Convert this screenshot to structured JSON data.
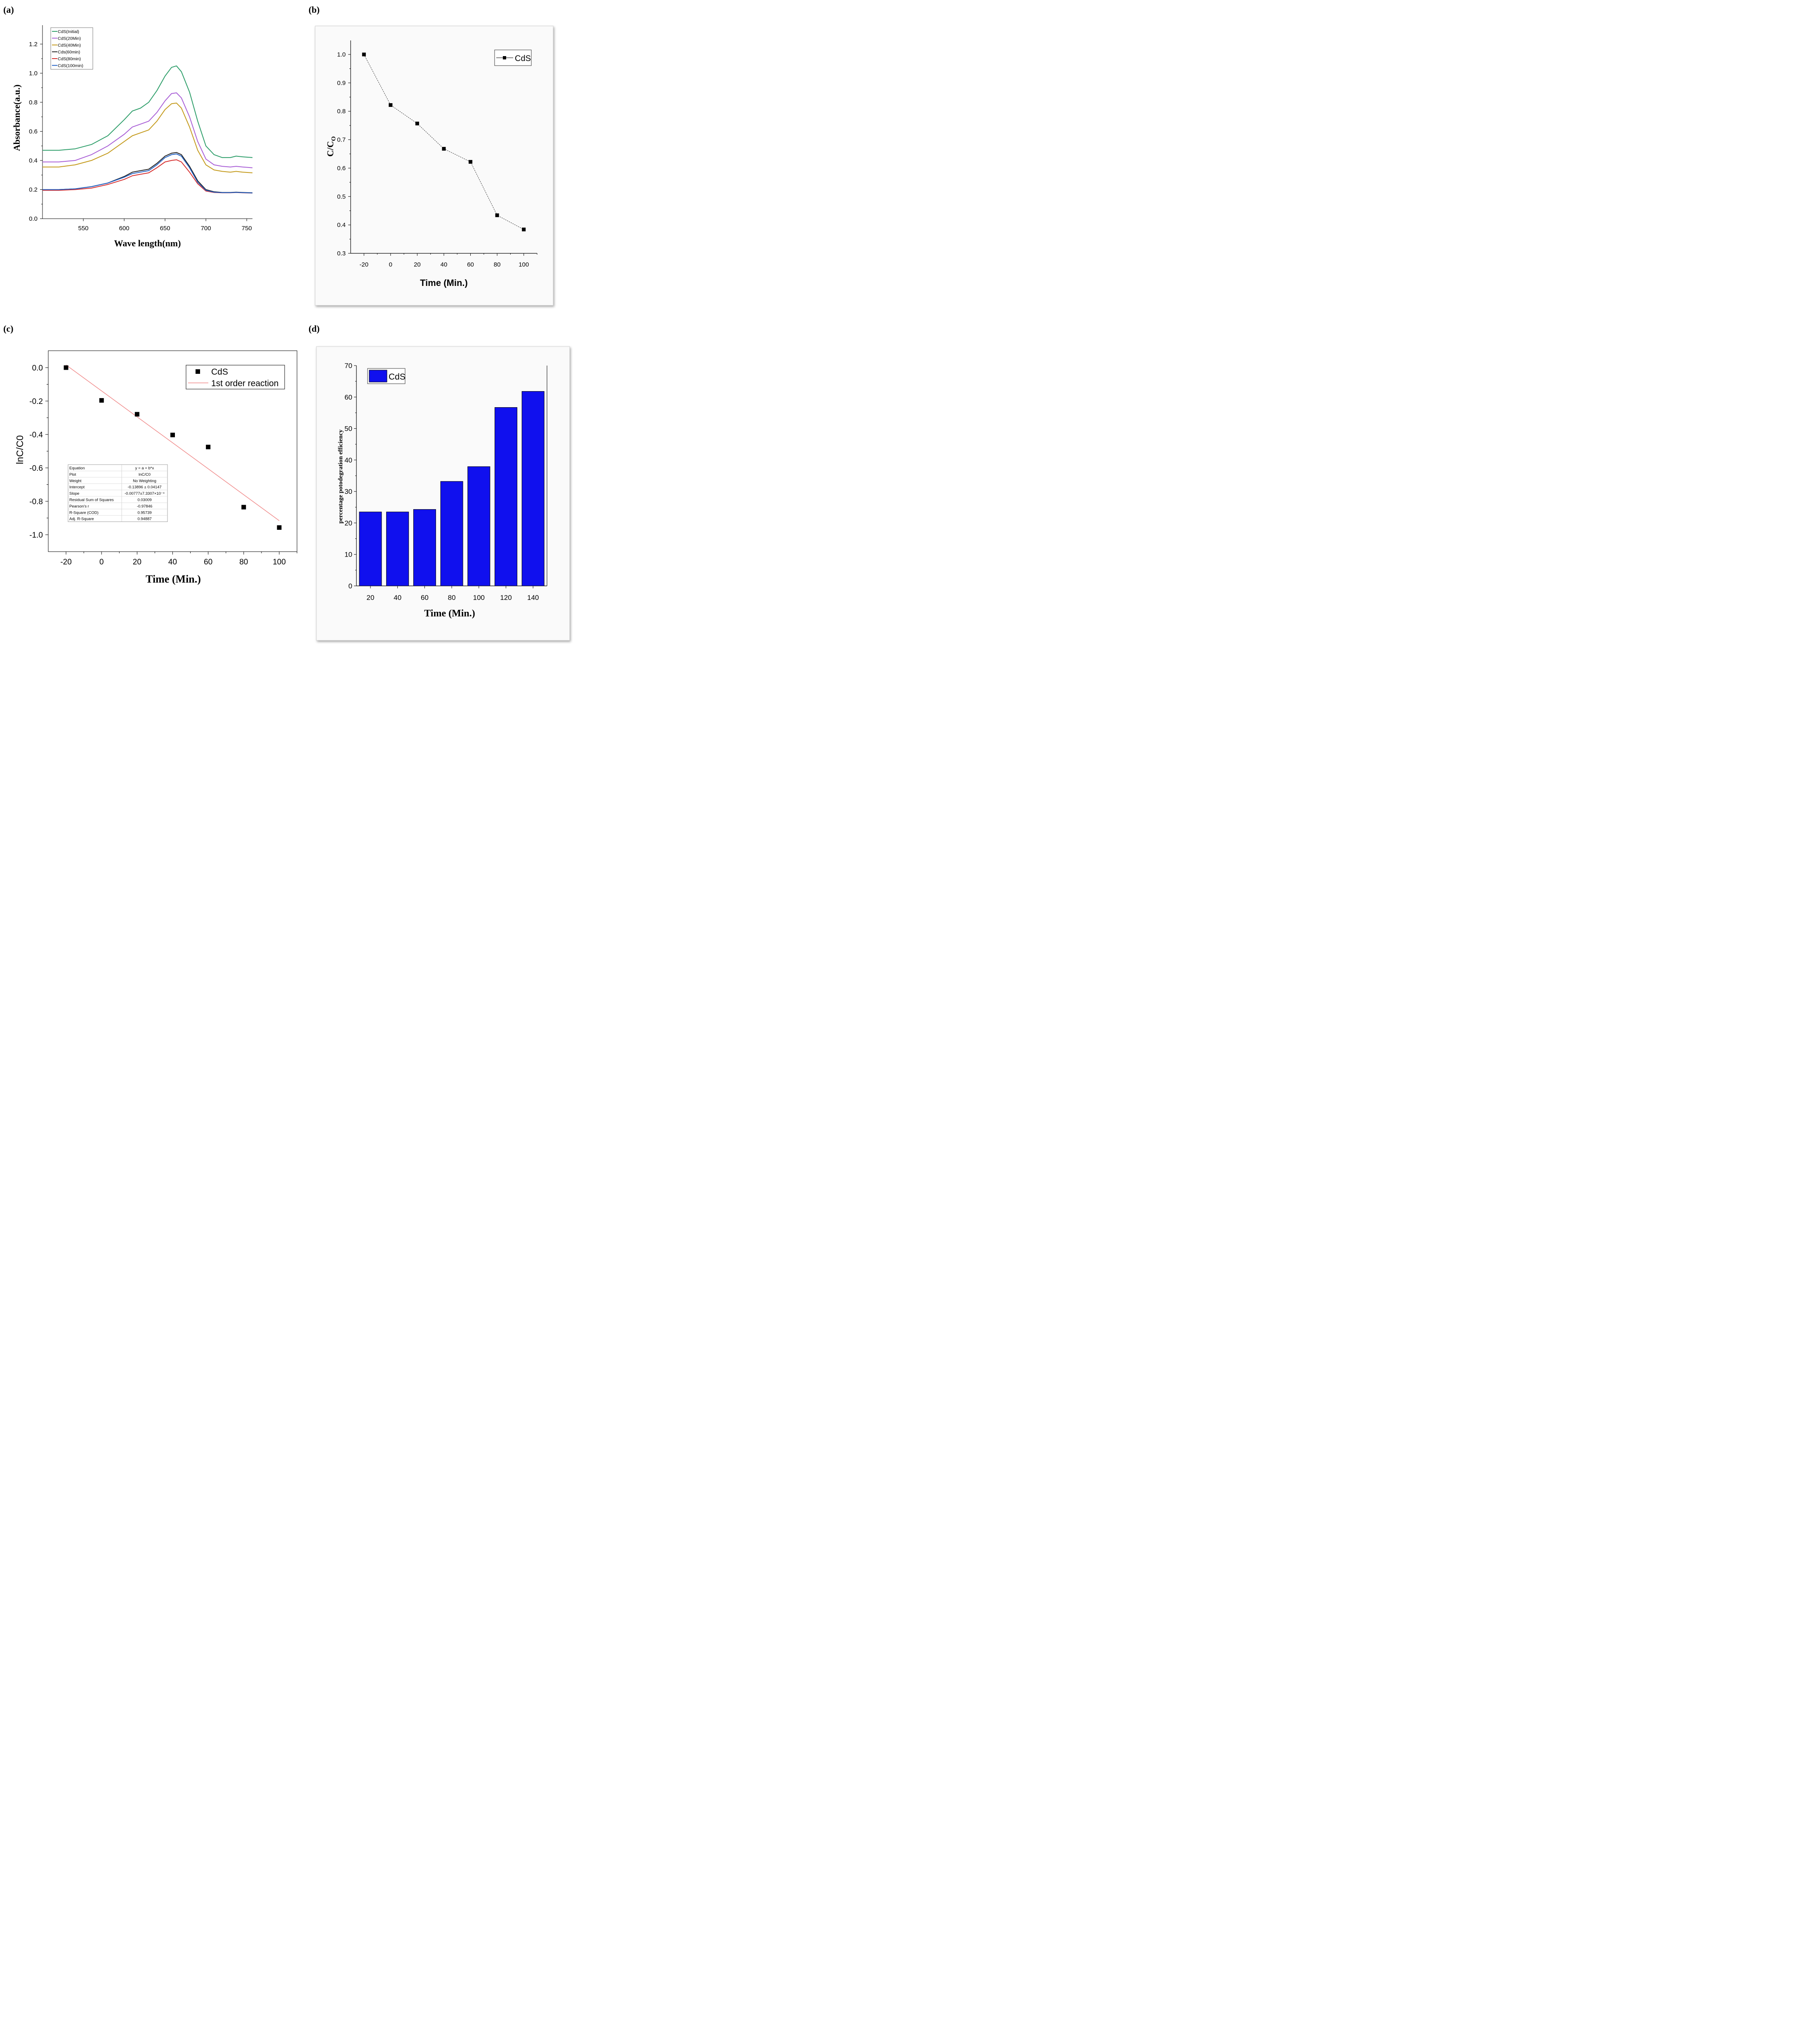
{
  "panels": {
    "a": "(a)",
    "b": "(b)",
    "c": "(c)",
    "d": "(d)"
  },
  "chart_data": [
    {
      "id": "a",
      "type": "line",
      "xlabel": "Wave length(nm)",
      "ylabel": "Absorbance(a.u.)",
      "xlim": [
        500,
        757
      ],
      "ylim": [
        0.0,
        1.33
      ],
      "xticks": [
        550,
        600,
        650,
        700,
        750
      ],
      "yticks": [
        0.0,
        0.2,
        0.4,
        0.6,
        0.8,
        1.0,
        1.2
      ],
      "ytick_labels": [
        "0.0",
        "0.2",
        "0.4",
        "0.6",
        "0.8",
        "1.0",
        "1.2"
      ],
      "legend_position": "top-left",
      "x": [
        500,
        520,
        540,
        560,
        580,
        600,
        610,
        620,
        630,
        640,
        650,
        658,
        664,
        670,
        680,
        690,
        700,
        710,
        720,
        730,
        737,
        745,
        757
      ],
      "series": [
        {
          "name": "CdS(Initial)",
          "color": "#2e9e6a",
          "values": [
            0.47,
            0.47,
            0.48,
            0.51,
            0.57,
            0.68,
            0.74,
            0.76,
            0.8,
            0.88,
            0.98,
            1.04,
            1.05,
            1.01,
            0.87,
            0.67,
            0.5,
            0.44,
            0.42,
            0.42,
            0.43,
            0.425,
            0.42
          ]
        },
        {
          "name": "CdS(20Min)",
          "color": "#a95fd6",
          "values": [
            0.39,
            0.39,
            0.4,
            0.44,
            0.5,
            0.58,
            0.63,
            0.65,
            0.67,
            0.73,
            0.81,
            0.86,
            0.865,
            0.83,
            0.7,
            0.53,
            0.41,
            0.37,
            0.36,
            0.355,
            0.36,
            0.355,
            0.35
          ]
        },
        {
          "name": "CdS(40Min)",
          "color": "#c49a1c",
          "values": [
            0.355,
            0.355,
            0.37,
            0.4,
            0.45,
            0.53,
            0.57,
            0.59,
            0.61,
            0.67,
            0.75,
            0.79,
            0.795,
            0.76,
            0.63,
            0.47,
            0.37,
            0.335,
            0.325,
            0.32,
            0.325,
            0.32,
            0.315
          ]
        },
        {
          "name": "Cds(60min)",
          "color": "#222222",
          "values": [
            0.2,
            0.2,
            0.205,
            0.22,
            0.245,
            0.29,
            0.32,
            0.33,
            0.34,
            0.38,
            0.43,
            0.45,
            0.455,
            0.44,
            0.36,
            0.26,
            0.2,
            0.185,
            0.18,
            0.18,
            0.182,
            0.18,
            0.178
          ]
        },
        {
          "name": "CdS(80min)",
          "color": "#d62f2f",
          "values": [
            0.195,
            0.195,
            0.2,
            0.21,
            0.235,
            0.27,
            0.295,
            0.305,
            0.315,
            0.35,
            0.39,
            0.4,
            0.405,
            0.39,
            0.32,
            0.24,
            0.19,
            0.18,
            0.178,
            0.178,
            0.18,
            0.178,
            0.176
          ]
        },
        {
          "name": "CdS(100min)",
          "color": "#1f5fc4",
          "values": [
            0.2,
            0.2,
            0.205,
            0.22,
            0.245,
            0.285,
            0.31,
            0.32,
            0.33,
            0.37,
            0.42,
            0.44,
            0.445,
            0.43,
            0.35,
            0.25,
            0.195,
            0.182,
            0.179,
            0.179,
            0.181,
            0.179,
            0.177
          ]
        }
      ]
    },
    {
      "id": "b",
      "type": "line",
      "xlabel": "Time (Min.)",
      "ylabel": "C/C",
      "ylabel_sub": "O",
      "xlim": [
        -30,
        110
      ],
      "ylim": [
        0.3,
        1.05
      ],
      "xticks": [
        -20,
        0,
        20,
        40,
        60,
        80,
        100
      ],
      "yticks": [
        0.3,
        0.4,
        0.5,
        0.6,
        0.7,
        0.8,
        0.9,
        1.0
      ],
      "ytick_labels": [
        "0.3",
        "0.4",
        "0.5",
        "0.6",
        "0.7",
        "0.8",
        "0.9",
        "1.0"
      ],
      "legend_position": "top-right",
      "series": [
        {
          "name": "CdS",
          "color": "#000000",
          "x": [
            -20,
            0,
            20,
            40,
            60,
            80,
            100
          ],
          "values": [
            1.0,
            0.822,
            0.757,
            0.668,
            0.622,
            0.434,
            0.384
          ]
        }
      ]
    },
    {
      "id": "c",
      "type": "scatter",
      "xlabel": "Time (Min.)",
      "ylabel": "lnC/C0",
      "xlim": [
        -30,
        110
      ],
      "ylim": [
        -1.1,
        0.1
      ],
      "xticks": [
        -20,
        0,
        20,
        40,
        60,
        80,
        100
      ],
      "yticks": [
        0.0,
        -0.2,
        -0.4,
        -0.6,
        -0.8,
        -1.0
      ],
      "ytick_labels": [
        "0.0",
        "-0.2",
        "-0.4",
        "-0.6",
        "-0.8",
        "-1.0"
      ],
      "legend_position": "top-right",
      "series": [
        {
          "name": "CdS",
          "color": "#000000",
          "x": [
            -20,
            0,
            20,
            40,
            60,
            80,
            100
          ],
          "values": [
            0.0,
            -0.196,
            -0.279,
            -0.403,
            -0.475,
            -0.835,
            -0.957
          ]
        },
        {
          "name": "1st order reaction",
          "color": "#f08a8a",
          "x": [
            -20,
            100
          ],
          "values": [
            0.016,
            -0.916
          ]
        }
      ],
      "fit_table": [
        [
          "Equation",
          "y = a + b*x"
        ],
        [
          "Plot",
          "lnC/C0"
        ],
        [
          "Weight",
          "No Weighting"
        ],
        [
          "Intercept",
          "-0.13896 ± 0.04147"
        ],
        [
          "Slope",
          "-0.00777±7.3307×10⁻⁴"
        ],
        [
          "Residual Sum of Squares",
          "0.03009"
        ],
        [
          "Pearson's r",
          "-0.97846"
        ],
        [
          "R-Square (COD)",
          "0.95739"
        ],
        [
          "Adj. R-Square",
          "0.94887"
        ]
      ]
    },
    {
      "id": "d",
      "type": "bar",
      "xlabel": "Time (Min.)",
      "ylabel": "percentage potodegration efficiency",
      "categories": [
        "20",
        "40",
        "60",
        "80",
        "100",
        "120",
        "140"
      ],
      "ylim": [
        0,
        70
      ],
      "yticks": [
        0,
        10,
        20,
        30,
        40,
        50,
        60,
        70
      ],
      "ytick_labels": [
        "0",
        "10",
        "20",
        "30",
        "40",
        "50",
        "60",
        "70"
      ],
      "legend_position": "top-left",
      "series": [
        {
          "name": "CdS",
          "color": "#1010ee",
          "values": [
            23.5,
            23.5,
            24.3,
            33.2,
            37.9,
            56.7,
            61.8
          ]
        }
      ]
    }
  ]
}
